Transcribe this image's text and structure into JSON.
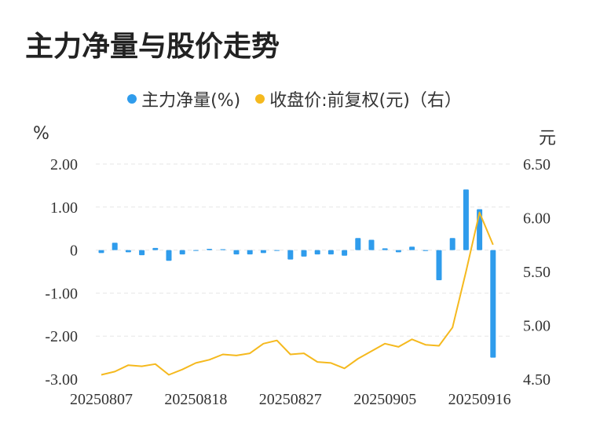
{
  "chart_data": {
    "type": "bar+line",
    "title": "主力净量与股价走势",
    "legend": [
      {
        "label": "主力净量(%)",
        "color": "#2f9cec"
      },
      {
        "label": "收盘价:前复权(元)（右）",
        "color": "#f5b91e"
      }
    ],
    "y_left_unit": "%",
    "y_right_unit": "元",
    "y_left_ticks": [
      "2.00",
      "1.00",
      "0",
      "-1.00",
      "-2.00",
      "-3.00"
    ],
    "y_left_range": [
      -3,
      2
    ],
    "y_right_ticks": [
      "6.50",
      "6.00",
      "5.50",
      "5.00",
      "4.50"
    ],
    "y_right_range": [
      4.5,
      6.5
    ],
    "x_tick_labels": [
      "20250807",
      "20250818",
      "20250827",
      "20250905",
      "20250916"
    ],
    "x_tick_indices": [
      0,
      7,
      14,
      21,
      28
    ],
    "dates": [
      "20250807",
      "20250808",
      "20250811",
      "20250812",
      "20250813",
      "20250814",
      "20250815",
      "20250818",
      "20250819",
      "20250820",
      "20250821",
      "20250822",
      "20250825",
      "20250826",
      "20250827",
      "20250828",
      "20250829",
      "20250901",
      "20250902",
      "20250903",
      "20250904",
      "20250905",
      "20250908",
      "20250909",
      "20250910",
      "20250911",
      "20250912",
      "20250915",
      "20250916",
      "20250917",
      "20250918"
    ],
    "series": [
      {
        "name": "主力净量(%)",
        "type": "bar",
        "axis": "left",
        "color": "#2f9cec",
        "values": [
          -0.07,
          0.17,
          -0.05,
          -0.12,
          0.05,
          -0.25,
          -0.1,
          -0.01,
          0.03,
          0.02,
          -0.1,
          -0.1,
          -0.07,
          0,
          -0.22,
          -0.15,
          -0.1,
          -0.1,
          -0.13,
          0.28,
          0.24,
          0.04,
          -0.05,
          0.08,
          -0.02,
          -0.7,
          0.28,
          1.41,
          0.95,
          -2.5,
          null
        ]
      },
      {
        "name": "收盘价:前复权(元)（右）",
        "type": "line",
        "axis": "right",
        "color": "#f5b91e",
        "values": [
          4.54,
          4.57,
          4.63,
          4.62,
          4.64,
          4.54,
          4.59,
          4.65,
          4.68,
          4.73,
          4.72,
          4.74,
          4.83,
          4.86,
          4.73,
          4.74,
          4.66,
          4.65,
          4.6,
          4.69,
          4.76,
          4.83,
          4.8,
          4.87,
          4.82,
          4.81,
          4.98,
          5.5,
          6.05,
          5.75,
          null
        ]
      }
    ]
  }
}
